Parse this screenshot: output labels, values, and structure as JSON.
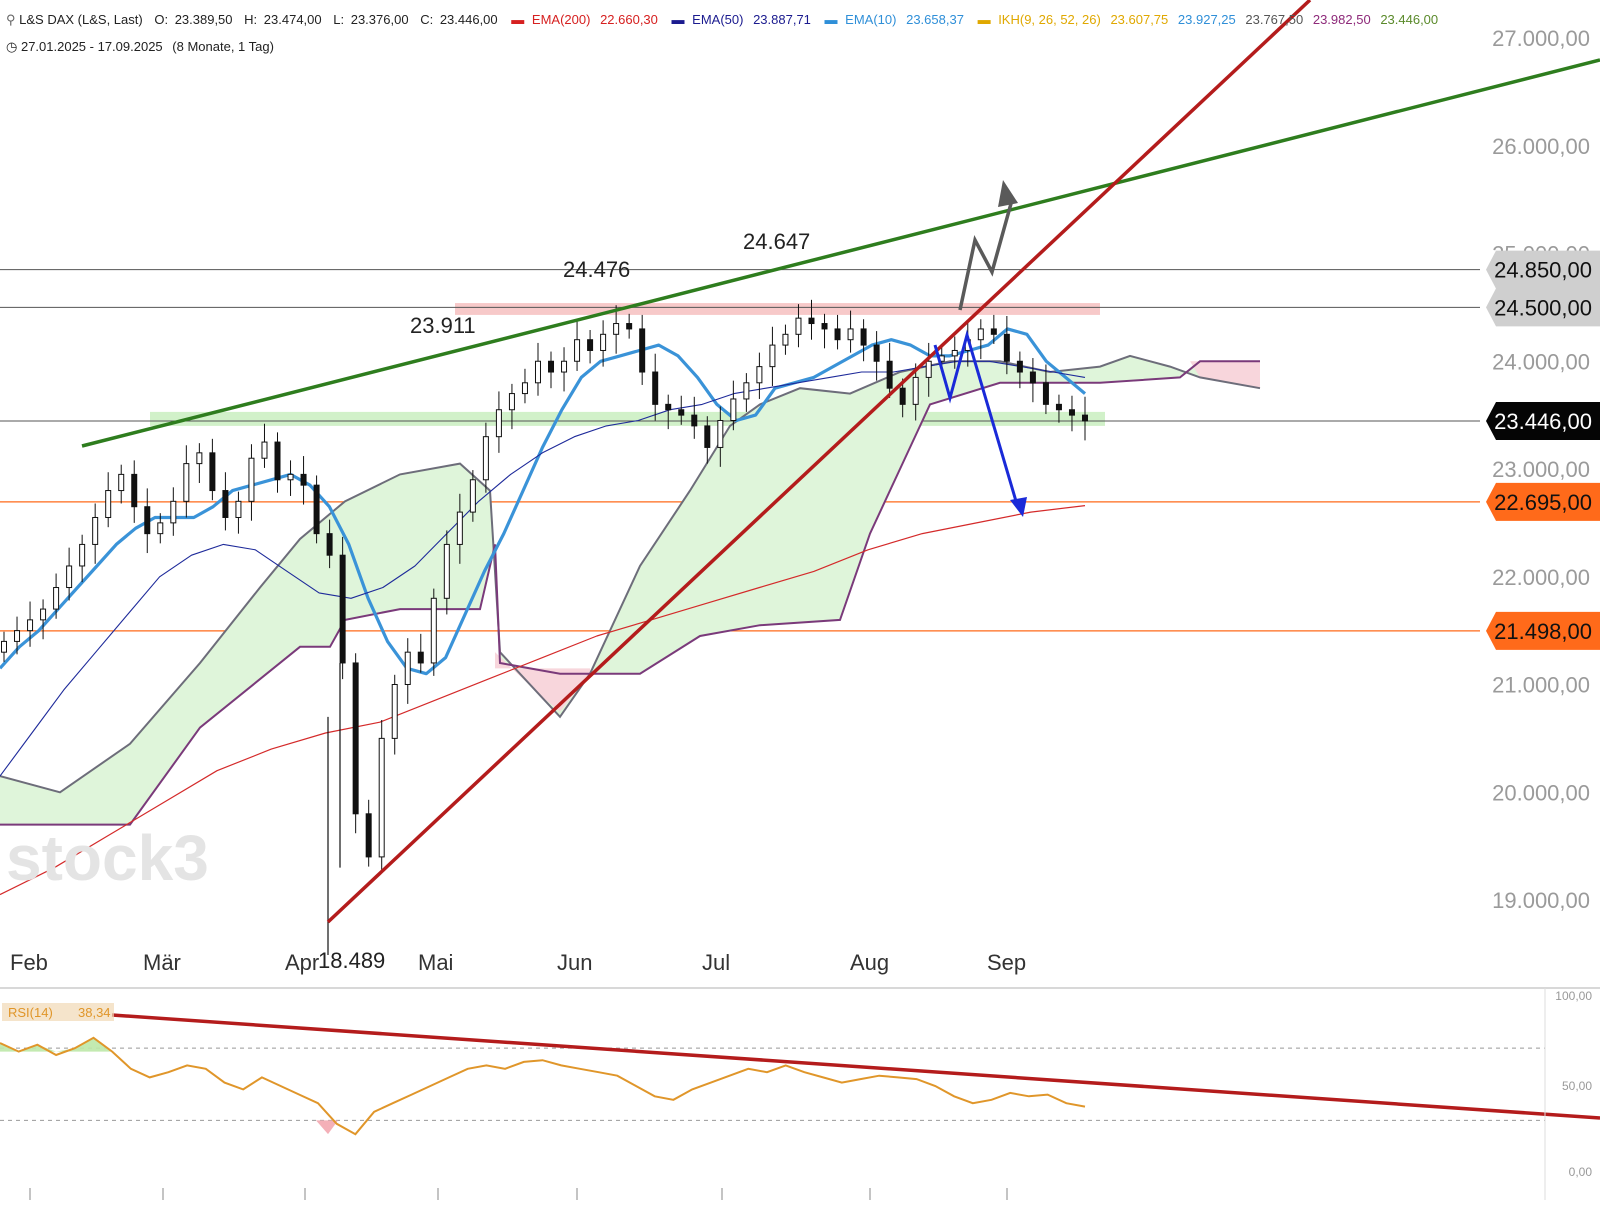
{
  "header": {
    "symbol_line": "L&S DAX (L&S, Last)",
    "ohlc": {
      "o_label": "O:",
      "o": "23.389,50",
      "h_label": "H:",
      "h": "23.474,00",
      "l_label": "L:",
      "l": "23.376,00",
      "c_label": "C:",
      "c": "23.446,00"
    },
    "indicators": [
      {
        "name": "EMA(200)",
        "value": "22.660,30",
        "color": "#d62020"
      },
      {
        "name": "EMA(50)",
        "value": "23.887,71",
        "color": "#1b1b8f"
      },
      {
        "name": "EMA(10)",
        "value": "23.658,37",
        "color": "#2f8fd8"
      }
    ],
    "ikh": {
      "name": "IKH(9, 26, 52, 26)",
      "values": [
        "23.607,75",
        "23.927,25",
        "23.767,50",
        "23.982,50",
        "23.446,00"
      ],
      "colors": [
        "#e0a800",
        "#2f8fd8",
        "#555555",
        "#8e2a7a",
        "#5a8a2a"
      ]
    },
    "range": "27.01.2025 - 17.09.2025",
    "range_detail": "(8 Monate, 1 Tag)"
  },
  "watermark": "stock3",
  "colors": {
    "ema10": "#3a93d8",
    "ema50": "#1e2a9a",
    "ema200": "#d42a2a",
    "cloud_fill": "#dff5da",
    "cloud_fill_bear": "#f8d6dc",
    "senkou_a": "#6d6d7a",
    "senkou_b": "#7a3a7a",
    "support_line": "#ff6a1a",
    "trend_green": "#2e7d1e",
    "trend_red": "#b41c1c",
    "resistance_band": "#f6c0c0",
    "support_band": "#c9efc0",
    "rsi": "#e0962a"
  },
  "chart_data": [
    {
      "type": "line",
      "title": "L&S DAX (L&S, Last)",
      "xlabel": "",
      "ylabel": "",
      "x_tick_labels": [
        "Feb",
        "Mär",
        "Apr",
        "Mai",
        "Jun",
        "Jul",
        "Aug",
        "Sep"
      ],
      "y_tick_labels": [
        "27.000,00",
        "26.000,00",
        "25.000,00",
        "24.000,00",
        "23.000,00",
        "22.000,00",
        "21.000,00",
        "20.000,00",
        "19.000,00"
      ],
      "ylim": [
        18600,
        27150
      ],
      "grid": false,
      "price_labels": [
        {
          "value": 24850,
          "text": "24.850,00",
          "style": "gray"
        },
        {
          "value": 24500,
          "text": "24.500,00",
          "style": "gray"
        },
        {
          "value": 23446,
          "text": "23.446,00",
          "style": "black"
        },
        {
          "value": 22695,
          "text": "22.695,00",
          "style": "orange"
        },
        {
          "value": 21498,
          "text": "21.498,00",
          "style": "orange"
        }
      ],
      "annotations": [
        {
          "text": "24.647",
          "value": 24647,
          "near": "Jul"
        },
        {
          "text": "24.476",
          "value": 24476,
          "near": "Mai"
        },
        {
          "text": "23.911",
          "value": 23911,
          "near": "Mär"
        },
        {
          "text": "18.489",
          "value": 18489,
          "near": "Apr"
        }
      ],
      "horizontal_lines": [
        24850,
        24500,
        23446,
        22695,
        21498
      ],
      "zones": [
        {
          "name": "resistance",
          "from": 24430,
          "to": 24540
        },
        {
          "name": "support",
          "from": 23400,
          "to": 23530
        }
      ],
      "series": [
        {
          "name": "Close",
          "style": "candles",
          "values": [
            21400,
            21500,
            21600,
            21700,
            21900,
            22100,
            22300,
            22550,
            22800,
            22950,
            22650,
            22400,
            22500,
            22700,
            23050,
            23150,
            22800,
            22550,
            22700,
            23100,
            23250,
            22900,
            22950,
            22850,
            22400,
            22200,
            21200,
            19800,
            19400,
            20500,
            21000,
            21300,
            21200,
            21800,
            22300,
            22600,
            22900,
            23300,
            23550,
            23700,
            23800,
            24000,
            23900,
            24000,
            24200,
            24100,
            24250,
            24350,
            24300,
            23900,
            23600,
            23550,
            23500,
            23400,
            23200,
            23450,
            23650,
            23800,
            23950,
            24150,
            24250,
            24400,
            24350,
            24300,
            24200,
            24300,
            24150,
            24000,
            23750,
            23600,
            23850,
            24000,
            24050,
            24100,
            24200,
            24300,
            24250,
            24000,
            23900,
            23800,
            23600,
            23550,
            23500,
            23446
          ]
        },
        {
          "name": "EMA(10)",
          "values": [
            21150,
            21350,
            21500,
            21700,
            21900,
            22100,
            22300,
            22450,
            22550,
            22550,
            22550,
            22650,
            22800,
            22850,
            22900,
            22950,
            22850,
            22650,
            22300,
            21800,
            21400,
            21150,
            21100,
            21250,
            21650,
            22050,
            22400,
            22800,
            23200,
            23550,
            23850,
            24000,
            24050,
            24100,
            24150,
            24050,
            23850,
            23600,
            23450,
            23500,
            23750,
            23800,
            23850,
            23950,
            24050,
            24150,
            24200,
            24150,
            24050,
            24050,
            24100,
            24150,
            24300,
            24250,
            24000,
            23850,
            23700
          ]
        },
        {
          "name": "EMA(50)",
          "values": [
            20150,
            20550,
            20950,
            21300,
            21650,
            22000,
            22200,
            22300,
            22250,
            22050,
            21850,
            21800,
            21900,
            22100,
            22400,
            22700,
            22950,
            23150,
            23300,
            23400,
            23450,
            23550,
            23600,
            23700,
            23750,
            23800,
            23850,
            23900,
            23900,
            23950,
            24000,
            24000,
            23950,
            23900,
            23850
          ]
        },
        {
          "name": "EMA(200)",
          "values": [
            19050,
            19300,
            19600,
            19900,
            20200,
            20400,
            20550,
            20650,
            20850,
            21050,
            21250,
            21450,
            21600,
            21750,
            21900,
            22050,
            22250,
            22400,
            22500,
            22600,
            22660
          ]
        }
      ]
    },
    {
      "type": "line",
      "title": "",
      "legend": [
        {
          "name": "RSI(14)",
          "value": "38,34"
        }
      ],
      "y_tick_labels": [
        "100,00",
        "50,00",
        "0,00"
      ],
      "ylim": [
        0,
        100
      ],
      "levels": [
        70,
        30
      ],
      "series": [
        {
          "name": "RSI(14)",
          "values": [
            75,
            70,
            74,
            68,
            72,
            78,
            70,
            60,
            55,
            58,
            62,
            60,
            52,
            48,
            55,
            50,
            45,
            40,
            28,
            22,
            35,
            40,
            45,
            50,
            55,
            60,
            62,
            60,
            64,
            65,
            62,
            60,
            58,
            56,
            50,
            44,
            42,
            48,
            52,
            56,
            60,
            58,
            62,
            58,
            55,
            52,
            54,
            56,
            55,
            54,
            50,
            44,
            40,
            42,
            46,
            44,
            45,
            40,
            38
          ]
        }
      ]
    }
  ]
}
